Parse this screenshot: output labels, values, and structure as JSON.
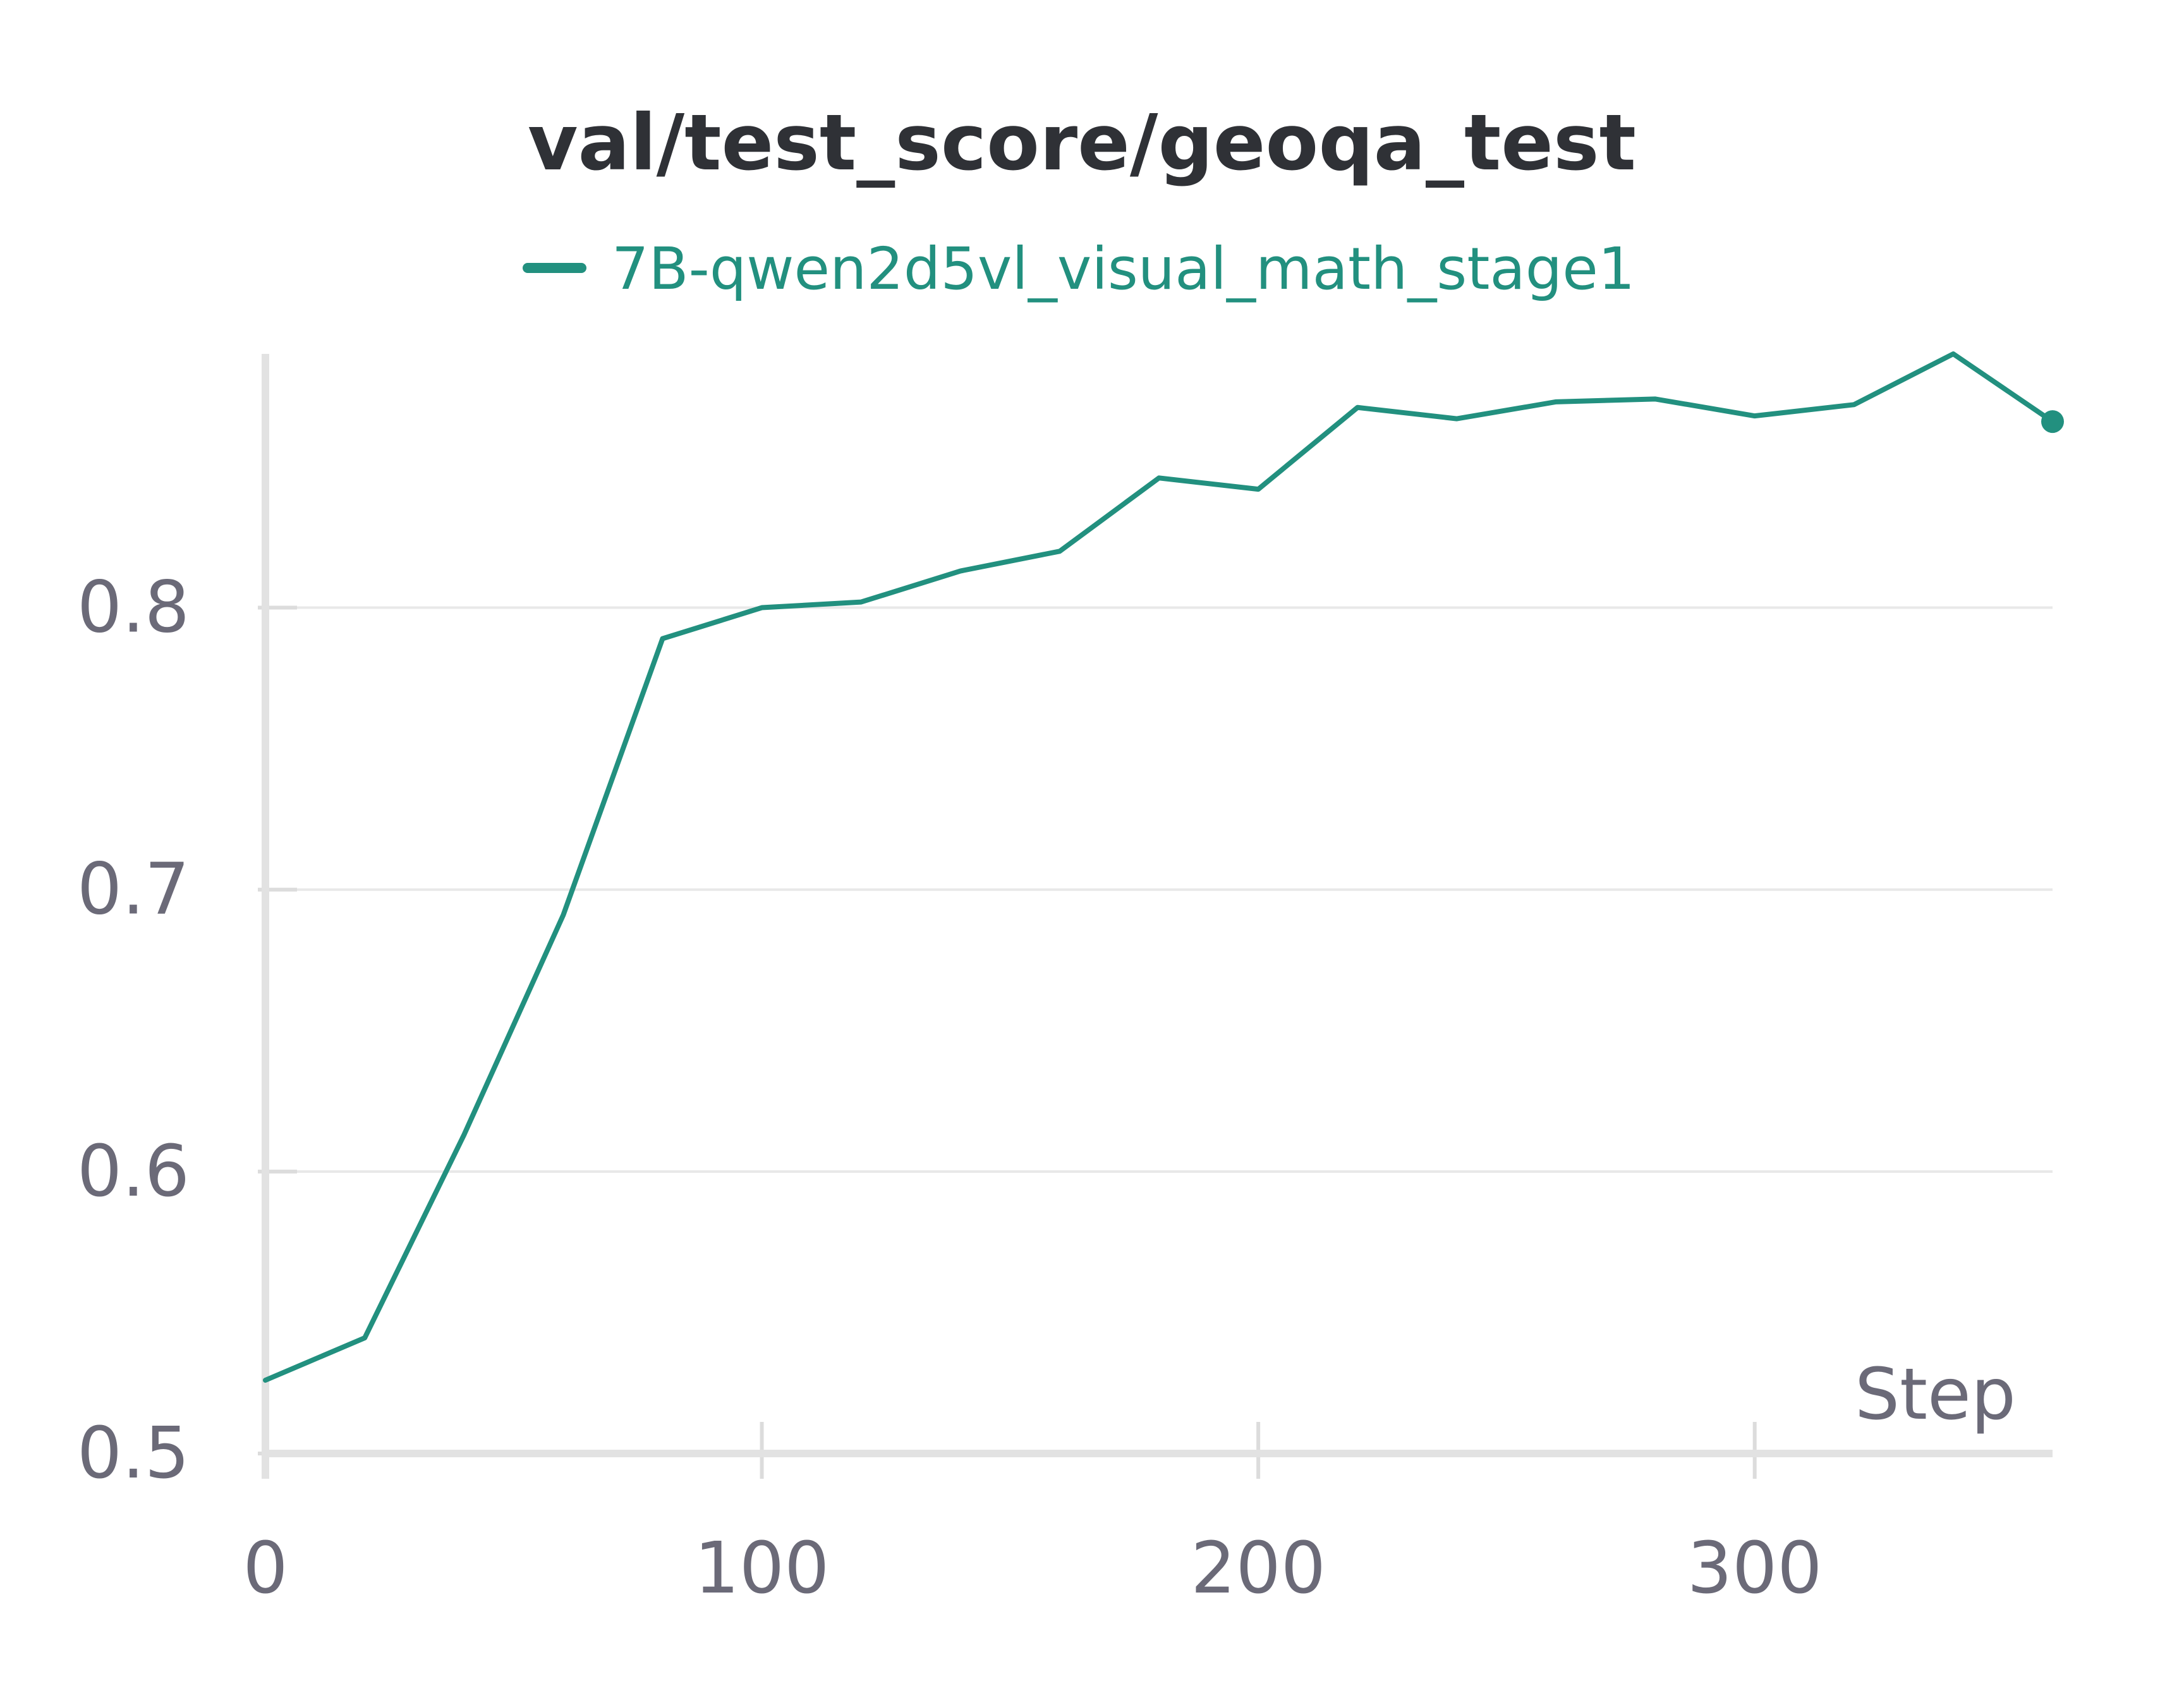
{
  "chart_data": {
    "type": "line",
    "title": "val/test_score/geoqa_test",
    "xlabel": "Step",
    "ylabel": "",
    "xlim": [
      0,
      360
    ],
    "ylim": [
      0.5,
      0.89
    ],
    "x_ticks": [
      0,
      100,
      200,
      300
    ],
    "y_ticks": [
      0.5,
      0.6,
      0.7,
      0.8
    ],
    "x_tick_labels": [
      "0",
      "100",
      "200",
      "300"
    ],
    "y_tick_labels": [
      "0.5",
      "0.6",
      "0.7",
      "0.8"
    ],
    "grid": "horizontal",
    "legend": "top-center",
    "series": [
      {
        "name": "7B-qwen2d5vl_visual_math_stage1",
        "color": "#22907f",
        "x": [
          0,
          20,
          40,
          60,
          80,
          100,
          120,
          140,
          160,
          180,
          200,
          220,
          240,
          260,
          280,
          300,
          320,
          340,
          360
        ],
        "values": [
          0.526,
          0.541,
          0.613,
          0.691,
          0.789,
          0.8,
          0.802,
          0.813,
          0.82,
          0.846,
          0.842,
          0.871,
          0.867,
          0.873,
          0.874,
          0.868,
          0.872,
          0.89,
          0.866
        ]
      }
    ]
  }
}
